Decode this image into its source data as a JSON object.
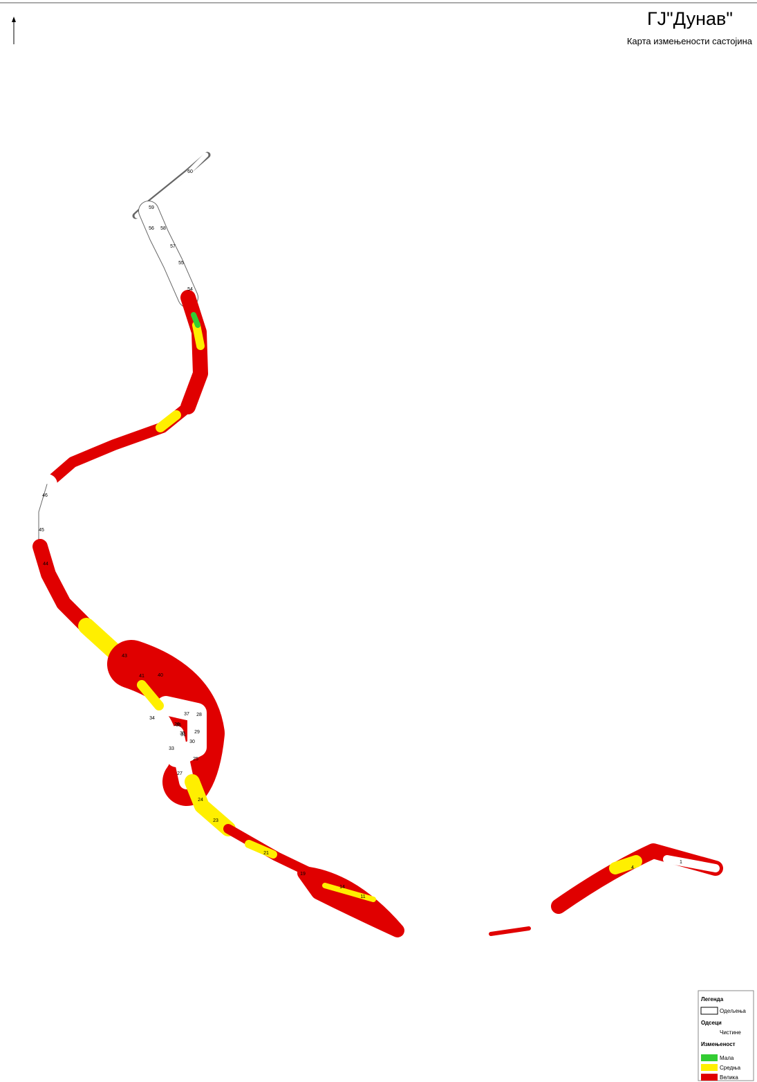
{
  "header": {
    "title": "ГЈ\"Дунав\"",
    "subtitle": "Карта измењености састојина"
  },
  "legend": {
    "title": "Легенда",
    "compartments": "Одељења",
    "sections_title": "Одсеци",
    "clearings": "Чистине",
    "change_title": "Измењеност",
    "low": "Мала",
    "medium": "Средња",
    "high": "Велика"
  },
  "labels": [
    "60",
    "59",
    "58",
    "57",
    "56",
    "55",
    "54",
    "46",
    "45",
    "44",
    "43",
    "41",
    "40",
    "37",
    "36",
    "35",
    "34",
    "33",
    "31",
    "30",
    "29",
    "28",
    "27",
    "26",
    "25",
    "24",
    "23",
    "21",
    "19",
    "14",
    "11",
    "4",
    "1"
  ]
}
